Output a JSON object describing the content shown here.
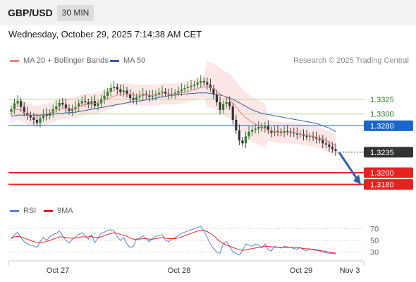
{
  "header": {
    "symbol": "GBP/USD",
    "timeframe": "30 MIN"
  },
  "datetime": "Wednesday, October 29, 2025 7:14:38 AM CET",
  "legend": {
    "ma20": "MA 20 + Bollinger Bands",
    "ma50": "MA 50",
    "credit": "Research © 2025 Trading Central",
    "rsi": "RSI",
    "rsi_ma": "9MA"
  },
  "colors": {
    "ma20": "#f08080",
    "ma50": "#3a5fa0",
    "bands_fill": "#fde3e3",
    "candle_up": "#2e7d32",
    "candle_down": "#333333",
    "support": "#e52222",
    "current_level": "#1a66cc",
    "resistance_lines": "#b7dc9c",
    "arrow": "#2e5fa8",
    "rsi": "#5b7fe0",
    "rsi_ma": "#e52222"
  },
  "chart_data": {
    "type": "candlestick",
    "y_range": [
      1.3158,
      1.3362
    ],
    "x_labels": [
      "Oct 27",
      "Oct 28",
      "Oct 29",
      "Nov 3"
    ],
    "levels": [
      {
        "value": 1.3325,
        "label": "1.3325",
        "kind": "resistance"
      },
      {
        "value": 1.33,
        "label": "1.3300",
        "kind": "resistance"
      },
      {
        "value": 1.328,
        "label": "1.3280",
        "kind": "pivot"
      },
      {
        "value": 1.3235,
        "label": "1.3235",
        "kind": "current"
      },
      {
        "value": 1.32,
        "label": "1.3200",
        "kind": "support"
      },
      {
        "value": 1.318,
        "label": "1.3180",
        "kind": "support"
      }
    ],
    "close": [
      1.3308,
      1.3318,
      1.3322,
      1.3312,
      1.3302,
      1.3298,
      1.3294,
      1.329,
      1.3285,
      1.3293,
      1.33,
      1.3297,
      1.3302,
      1.3308,
      1.3313,
      1.3319,
      1.3316,
      1.331,
      1.3305,
      1.3308,
      1.3312,
      1.3318,
      1.3322,
      1.332,
      1.3316,
      1.3322,
      1.3314,
      1.3318,
      1.3325,
      1.3331,
      1.3338,
      1.3344,
      1.3346,
      1.3342,
      1.3337,
      1.334,
      1.3334,
      1.3327,
      1.3324,
      1.3329,
      1.3331,
      1.3334,
      1.3332,
      1.3329,
      1.3331,
      1.3334,
      1.3336,
      1.3338,
      1.3335,
      1.3333,
      1.3334,
      1.3336,
      1.3339,
      1.3342,
      1.3344,
      1.3346,
      1.3348,
      1.335,
      1.3353,
      1.3356,
      1.3354,
      1.335,
      1.3344,
      1.3333,
      1.332,
      1.3307,
      1.3317,
      1.332,
      1.3313,
      1.329,
      1.3272,
      1.3255,
      1.325,
      1.3262,
      1.327,
      1.3273,
      1.3275,
      1.3278,
      1.3276,
      1.3279,
      1.3272,
      1.3268,
      1.3271,
      1.327,
      1.3268,
      1.3271,
      1.327,
      1.3269,
      1.3267,
      1.3265,
      1.3266,
      1.3263,
      1.3261,
      1.3262,
      1.326,
      1.3258,
      1.3256,
      1.325,
      1.3248,
      1.3244,
      1.324,
      1.3237
    ],
    "ma20": [
      1.3302,
      1.3306,
      1.3308,
      1.3306,
      1.3303,
      1.33,
      1.3299,
      1.3297,
      1.3296,
      1.3297,
      1.3299,
      1.33,
      1.3302,
      1.3304,
      1.3306,
      1.3308,
      1.3309,
      1.3309,
      1.3309,
      1.331,
      1.3311,
      1.3313,
      1.3315,
      1.3316,
      1.3316,
      1.3317,
      1.3318,
      1.3319,
      1.3321,
      1.3323,
      1.3325,
      1.3328,
      1.333,
      1.3332,
      1.3333,
      1.3334,
      1.3334,
      1.3333,
      1.3332,
      1.3332,
      1.3332,
      1.3332,
      1.3332,
      1.3332,
      1.3332,
      1.3332,
      1.3333,
      1.3334,
      1.3334,
      1.3334,
      1.3334,
      1.3334,
      1.3335,
      1.3336,
      1.3337,
      1.3338,
      1.334,
      1.3341,
      1.3343,
      1.3345,
      1.3346,
      1.3346,
      1.3345,
      1.3343,
      1.3339,
      1.3334,
      1.3331,
      1.3328,
      1.3325,
      1.3319,
      1.3312,
      1.3305,
      1.3299,
      1.3294,
      1.329,
      1.3286,
      1.3283,
      1.328,
      1.3277,
      1.3275,
      1.3273,
      1.3271,
      1.327,
      1.3269,
      1.3268,
      1.3268,
      1.3268,
      1.3268,
      1.3268,
      1.3267,
      1.3266,
      1.3265,
      1.3264,
      1.3263,
      1.3262,
      1.3261,
      1.3259,
      1.3257,
      1.3255,
      1.3252,
      1.3249,
      1.3246
    ],
    "ma50": [
      1.3296,
      1.3297,
      1.3298,
      1.3298,
      1.3298,
      1.3298,
      1.3298,
      1.3298,
      1.3298,
      1.3298,
      1.3299,
      1.3299,
      1.3299,
      1.33,
      1.33,
      1.3301,
      1.3301,
      1.3302,
      1.3302,
      1.3303,
      1.3303,
      1.3304,
      1.3305,
      1.3306,
      1.3307,
      1.3308,
      1.3309,
      1.331,
      1.3311,
      1.3312,
      1.3313,
      1.3314,
      1.3315,
      1.3316,
      1.3317,
      1.3318,
      1.3319,
      1.332,
      1.3321,
      1.3322,
      1.3322,
      1.3323,
      1.3324,
      1.3325,
      1.3326,
      1.3327,
      1.3328,
      1.3329,
      1.333,
      1.3331,
      1.3332,
      1.3332,
      1.3333,
      1.3333,
      1.3334,
      1.3334,
      1.3335,
      1.3335,
      1.3336,
      1.3336,
      1.3336,
      1.3336,
      1.3335,
      1.3334,
      1.3333,
      1.3332,
      1.3331,
      1.3329,
      1.3327,
      1.3325,
      1.3322,
      1.3319,
      1.3316,
      1.3313,
      1.331,
      1.3307,
      1.3305,
      1.3303,
      1.3301,
      1.33,
      1.3299,
      1.3298,
      1.3297,
      1.3296,
      1.3295,
      1.3294,
      1.3293,
      1.3292,
      1.3291,
      1.329,
      1.3289,
      1.3288,
      1.3287,
      1.3286,
      1.3285,
      1.3284,
      1.3282,
      1.328,
      1.3278,
      1.3276,
      1.3273,
      1.327
    ],
    "band_width": 0.0018,
    "rsi": {
      "y_range": [
        20,
        80
      ],
      "ticks": [
        70,
        50,
        30
      ],
      "values": [
        52,
        60,
        64,
        55,
        48,
        44,
        42,
        40,
        38,
        48,
        55,
        50,
        56,
        60,
        62,
        66,
        58,
        50,
        46,
        52,
        56,
        60,
        63,
        58,
        52,
        60,
        46,
        54,
        62,
        64,
        67,
        68,
        66,
        56,
        50,
        55,
        44,
        38,
        40,
        52,
        54,
        58,
        52,
        48,
        53,
        57,
        58,
        60,
        50,
        48,
        52,
        55,
        58,
        62,
        64,
        66,
        68,
        70,
        72,
        74,
        66,
        55,
        44,
        36,
        30,
        28,
        44,
        48,
        40,
        30,
        28,
        25,
        32,
        44,
        42,
        40,
        44,
        42,
        37,
        44,
        34,
        32,
        40,
        38,
        37,
        40,
        39,
        38,
        36,
        35,
        38,
        34,
        32,
        36,
        34,
        33,
        32,
        30,
        29,
        28,
        28,
        27
      ],
      "ma9": [
        55,
        56,
        57,
        56,
        54,
        52,
        50,
        48,
        46,
        46,
        47,
        48,
        50,
        52,
        54,
        56,
        56,
        55,
        54,
        54,
        54,
        55,
        56,
        56,
        56,
        57,
        55,
        55,
        56,
        58,
        60,
        62,
        63,
        62,
        60,
        59,
        57,
        54,
        52,
        52,
        52,
        53,
        53,
        52,
        52,
        53,
        54,
        55,
        54,
        53,
        53,
        53,
        54,
        56,
        58,
        60,
        62,
        64,
        66,
        67,
        67,
        65,
        62,
        58,
        53,
        48,
        45,
        42,
        40,
        38,
        36,
        34,
        33,
        34,
        35,
        36,
        37,
        38,
        39,
        40,
        40,
        39,
        39,
        38,
        38,
        38,
        38,
        38,
        38,
        38,
        37,
        36,
        36,
        35,
        35,
        34,
        33,
        32,
        31,
        30,
        29,
        28
      ]
    }
  }
}
